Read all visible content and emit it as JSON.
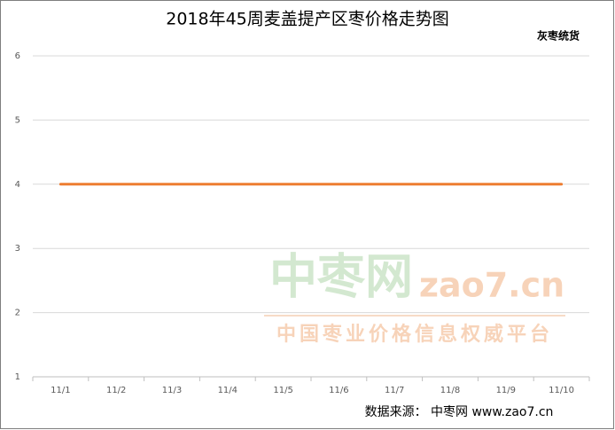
{
  "chart_data": {
    "type": "line",
    "title": "2018年45周麦盖提产区枣价格走势图",
    "categories": [
      "11/1",
      "11/2",
      "11/3",
      "11/4",
      "11/5",
      "11/6",
      "11/7",
      "11/8",
      "11/9",
      "11/10"
    ],
    "series": [
      {
        "name": "灰枣统货",
        "color": "#ed7d31",
        "values": [
          4,
          4,
          4,
          4,
          4,
          4,
          4,
          4,
          4,
          4
        ]
      }
    ],
    "ylim": [
      1,
      6
    ],
    "yticks": [
      1,
      2,
      3,
      4,
      5,
      6
    ],
    "grid": true,
    "legend": "top-right",
    "annotations": [
      "中枣网",
      "zao7.cn",
      "中国枣业价格信息权威平台",
      "数据来源：  中枣网 www.zao7.cn"
    ]
  }
}
